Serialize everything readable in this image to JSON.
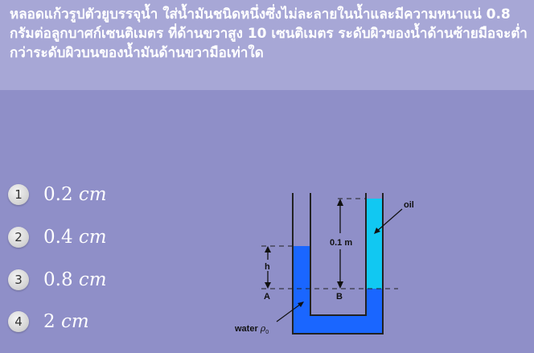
{
  "question": {
    "text": "หลอดแก้วรูปตัวยูบรรจุน้ำ ใส่น้ำมันชนิดหนึ่งซึ่งไม่ละลายในน้ำและมีความหนาแน่ 0.8 กรัมต่อลูกบาศก์เซนติเมตร ที่ด้านขวาสูง 10 เซนติเมตร ระดับผิวของน้ำด้านซ้ายมือจะต่ำกว่าระดับผิวบนของน้ำมันด้านขวามือเท่าใด"
  },
  "choices": [
    {
      "number": "1",
      "value": "0.2",
      "unit": "cm"
    },
    {
      "number": "2",
      "value": "0.4",
      "unit": "cm"
    },
    {
      "number": "3",
      "value": "0.8",
      "unit": "cm"
    },
    {
      "number": "4",
      "value": "2",
      "unit": "cm"
    }
  ],
  "diagram": {
    "oil_label": "oil",
    "height_label": "0.1 m",
    "h_label": "h",
    "point_a": "A",
    "point_b": "B",
    "water_label": "water",
    "density_symbol": "ρ",
    "density_subscript": "0",
    "colors": {
      "water": "#1a66ff",
      "oil": "#11c8f2",
      "tube_wall": "#222222"
    }
  }
}
